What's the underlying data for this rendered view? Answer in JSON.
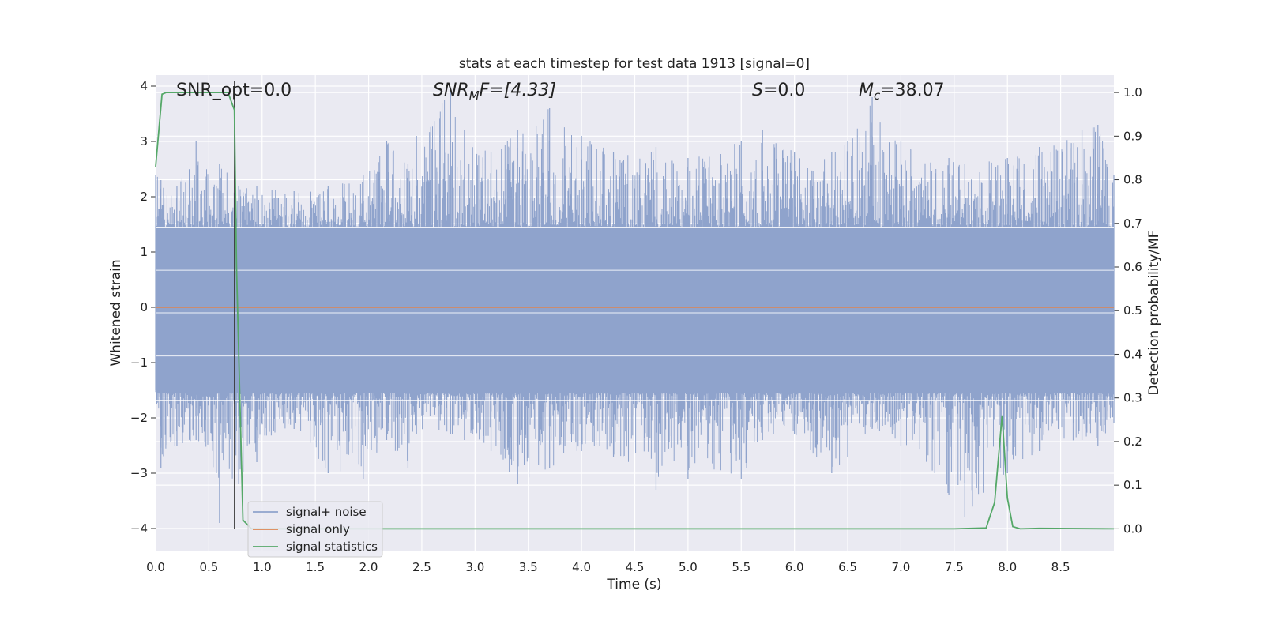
{
  "chart_data": {
    "type": "line",
    "title": "stats at each timestep for test data 1913 [signal=0]",
    "xlabel": "Time (s)",
    "ylabel": "Whitened strain",
    "y2label": "Detection probability/MF",
    "xlim": [
      0.0,
      9.0
    ],
    "ylim": [
      -4.4,
      4.2
    ],
    "y2lim": [
      -0.05,
      1.04
    ],
    "xticks": [
      "0.0",
      "0.5",
      "1.0",
      "1.5",
      "2.0",
      "2.5",
      "3.0",
      "3.5",
      "4.0",
      "4.5",
      "5.0",
      "5.5",
      "6.0",
      "6.5",
      "7.0",
      "7.5",
      "8.0",
      "8.5"
    ],
    "yticks": [
      "−4",
      "−3",
      "−2",
      "−1",
      "0",
      "1",
      "2",
      "3",
      "4"
    ],
    "y2ticks": [
      "0.0",
      "0.1",
      "0.2",
      "0.3",
      "0.4",
      "0.5",
      "0.6",
      "0.7",
      "0.8",
      "0.9",
      "1.0"
    ],
    "grid": true,
    "legend_position": "lower-left",
    "annotations": {
      "snr_opt": "SNR_opt=0.0",
      "snr_mf_sym": "SNR",
      "snr_mf_sub": "M",
      "snr_mf_rest": "F=[4.33]",
      "s_sym": "S",
      "s_rest": "=0.0",
      "mc_sym": "M",
      "mc_sub": "c",
      "mc_rest": "=38.07"
    },
    "vline_x": 0.74,
    "colors": {
      "noise": "#8fa3cc",
      "signal": "#dd8452",
      "stats": "#55a868",
      "background": "#eaeaf2",
      "grid": "#ffffff"
    },
    "series": [
      {
        "name": "signal+ noise",
        "envelope_points": [
          [
            0.0,
            2.4,
            -1.5
          ],
          [
            0.05,
            2.3,
            -2.9
          ],
          [
            0.2,
            2.2,
            -2.5
          ],
          [
            0.38,
            3.0,
            -2.4
          ],
          [
            0.57,
            2.2,
            -3.0
          ],
          [
            0.6,
            2.6,
            -3.9
          ],
          [
            0.78,
            2.2,
            -3.2
          ],
          [
            0.95,
            2.2,
            -2.8
          ],
          [
            1.3,
            2.1,
            -2.2
          ],
          [
            1.62,
            2.2,
            -3.0
          ],
          [
            1.95,
            2.4,
            -3.1
          ],
          [
            2.17,
            3.0,
            -2.4
          ],
          [
            2.37,
            2.6,
            -2.9
          ],
          [
            2.45,
            3.1,
            -2.3
          ],
          [
            2.77,
            3.9,
            -2.3
          ],
          [
            2.9,
            3.2,
            -2.4
          ],
          [
            3.15,
            2.8,
            -2.6
          ],
          [
            3.4,
            3.2,
            -3.2
          ],
          [
            3.7,
            3.6,
            -2.9
          ],
          [
            4.0,
            3.1,
            -2.6
          ],
          [
            4.3,
            2.8,
            -2.7
          ],
          [
            4.7,
            2.9,
            -3.3
          ],
          [
            5.0,
            2.7,
            -3.1
          ],
          [
            5.5,
            3.0,
            -3.1
          ],
          [
            5.7,
            3.2,
            -2.4
          ],
          [
            6.0,
            2.8,
            -2.3
          ],
          [
            6.35,
            2.8,
            -3.0
          ],
          [
            6.5,
            3.0,
            -2.7
          ],
          [
            6.73,
            3.8,
            -2.2
          ],
          [
            7.0,
            3.0,
            -2.5
          ],
          [
            7.45,
            2.7,
            -3.4
          ],
          [
            7.6,
            2.6,
            -3.8
          ],
          [
            8.0,
            2.7,
            -3.0
          ],
          [
            8.3,
            2.9,
            -2.6
          ],
          [
            8.7,
            3.2,
            -2.4
          ],
          [
            8.85,
            3.3,
            -2.5
          ],
          [
            9.0,
            2.4,
            -2.1
          ]
        ]
      },
      {
        "name": "signal only",
        "x": [
          0.0,
          9.0
        ],
        "y": [
          0.0,
          0.0
        ]
      },
      {
        "name": "signal statistics",
        "axis": "right",
        "x": [
          0.0,
          0.06,
          0.1,
          0.2,
          0.5,
          0.68,
          0.74,
          0.76,
          0.82,
          0.9,
          1.0,
          2.0,
          4.0,
          6.0,
          7.5,
          7.8,
          7.88,
          7.95,
          8.0,
          8.05,
          8.12,
          8.3,
          9.0
        ],
        "y": [
          0.83,
          0.996,
          1.0,
          1.0,
          1.0,
          1.0,
          0.96,
          0.6,
          0.02,
          0.0,
          0.0,
          0.0,
          0.0,
          0.0,
          0.0,
          0.002,
          0.06,
          0.26,
          0.07,
          0.005,
          0.0,
          0.001,
          0.0
        ]
      }
    ]
  }
}
